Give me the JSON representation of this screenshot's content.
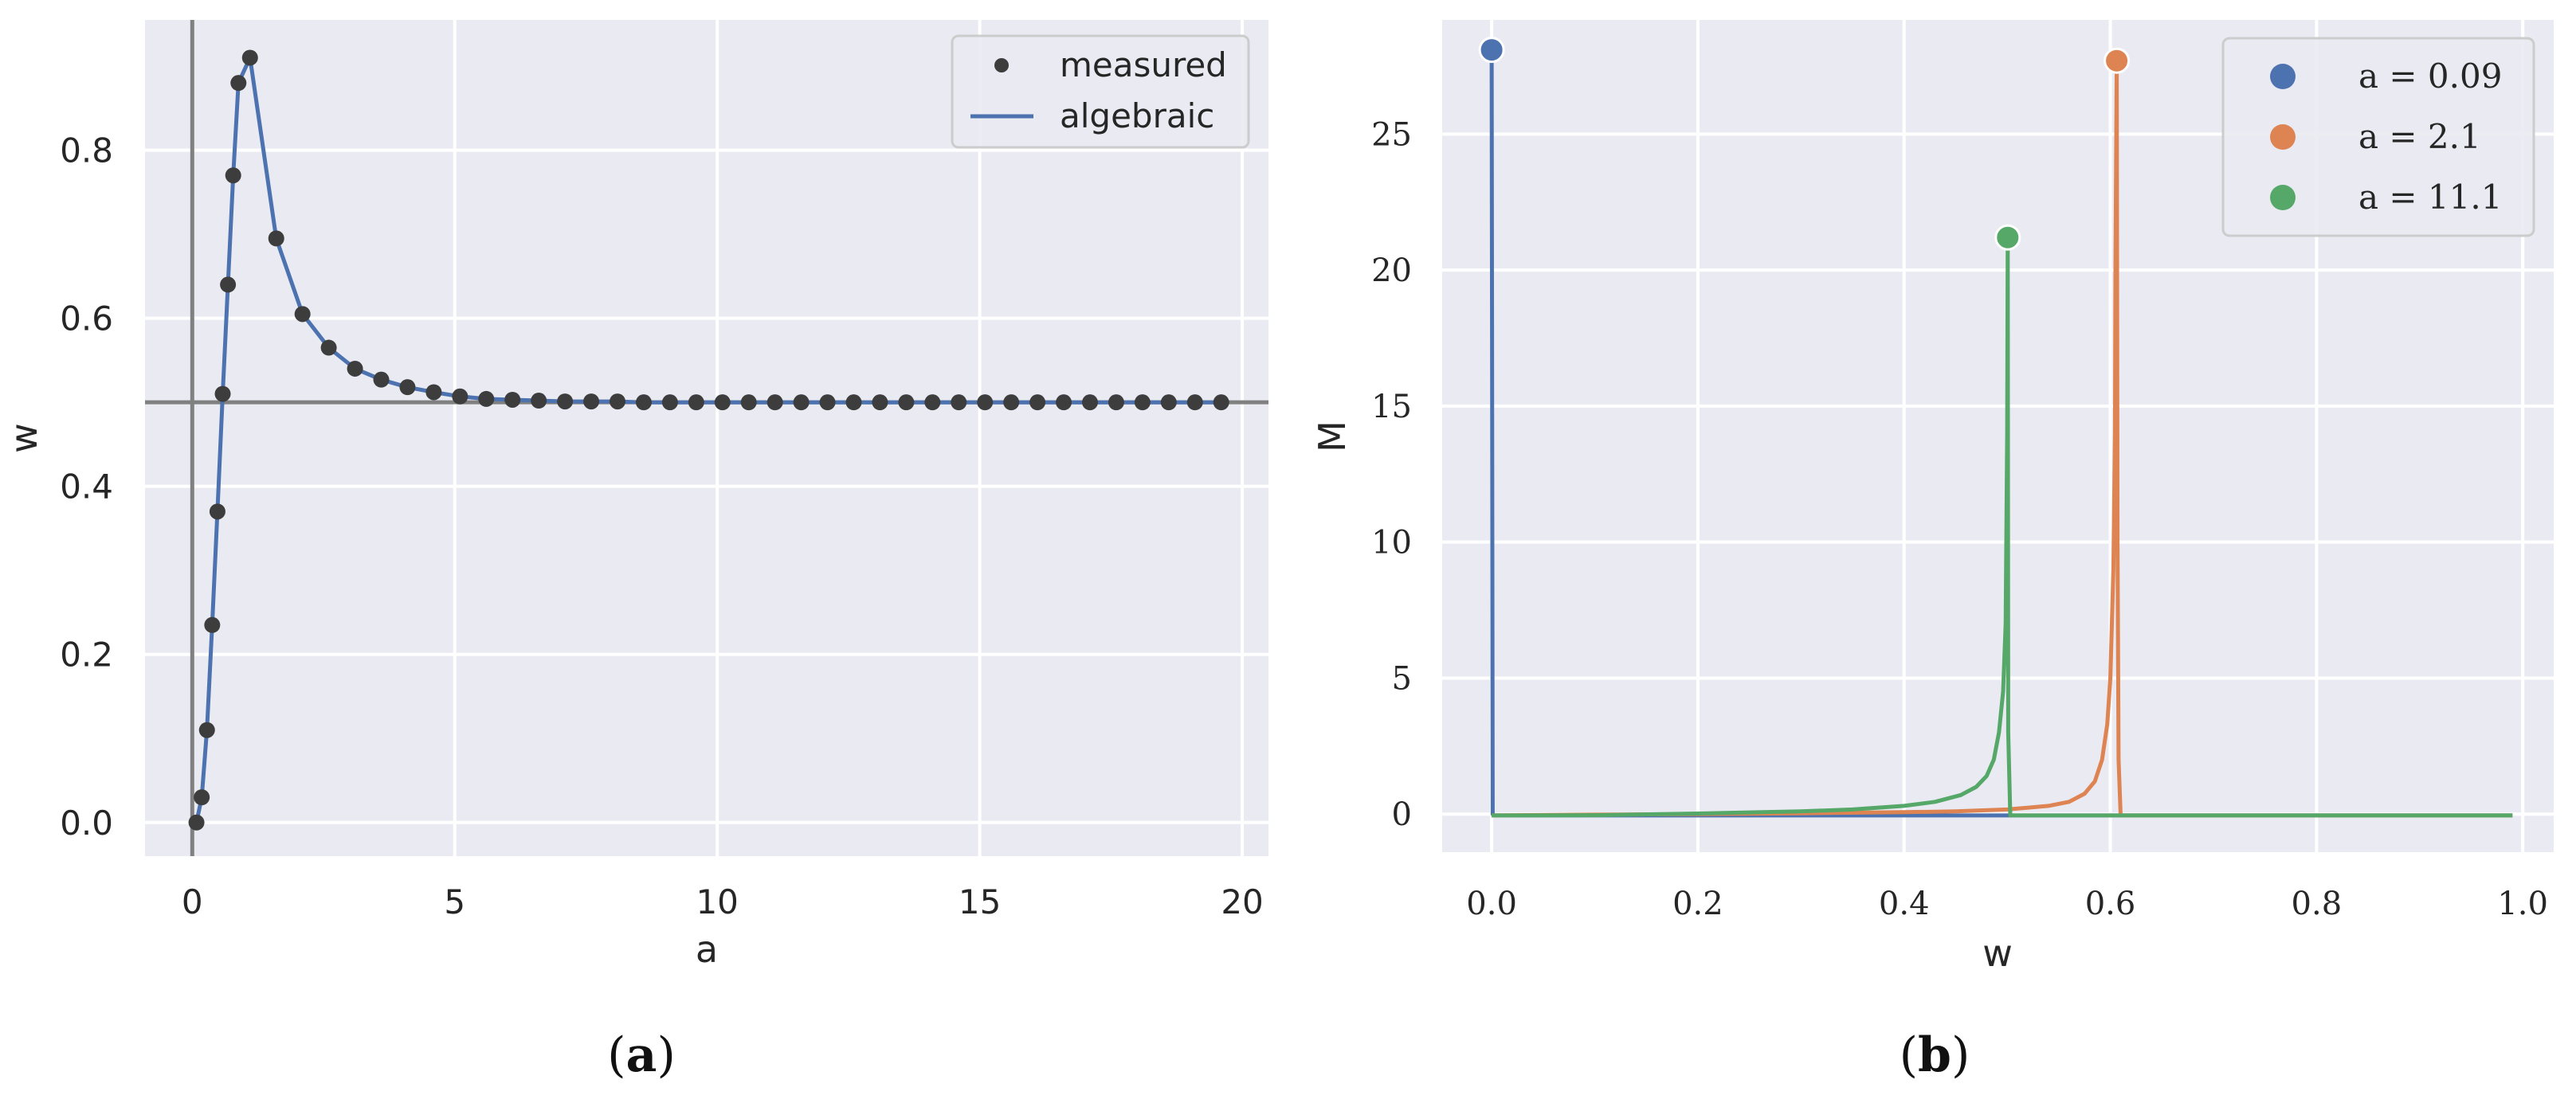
{
  "captions": {
    "a_open": "(",
    "a_letter": "a",
    "a_close": ")",
    "b_open": "(",
    "b_letter": "b",
    "b_close": ")"
  },
  "chart_data": [
    {
      "type": "scatter",
      "xlabel": "a",
      "ylabel": "w",
      "xlim": [
        -0.9,
        20.5
      ],
      "ylim": [
        -0.04,
        0.955
      ],
      "xticks": [
        0,
        5,
        10,
        15,
        20
      ],
      "xtick_labels": [
        "0",
        "5",
        "10",
        "15",
        "20"
      ],
      "yticks": [
        0.0,
        0.2,
        0.4,
        0.6,
        0.8
      ],
      "ytick_labels": [
        "0.0",
        "0.2",
        "0.4",
        "0.6",
        "0.8"
      ],
      "grid": true,
      "legend": "top-right",
      "reference_lines": {
        "vertical_x": 0,
        "horizontal_y": 0.5,
        "color": "#808080"
      },
      "series": [
        {
          "name": "measured",
          "kind": "points",
          "color": "#3d3d3d",
          "x": [
            0.08,
            0.18,
            0.28,
            0.38,
            0.48,
            0.58,
            0.68,
            0.78,
            0.88,
            1.1,
            1.6,
            2.1,
            2.6,
            3.1,
            3.6,
            4.1,
            4.6,
            5.1,
            5.6,
            6.1,
            6.6,
            7.1,
            7.6,
            8.1,
            8.6,
            9.1,
            9.6,
            10.1,
            10.6,
            11.1,
            11.6,
            12.1,
            12.6,
            13.1,
            13.6,
            14.1,
            14.6,
            15.1,
            15.6,
            16.1,
            16.6,
            17.1,
            17.6,
            18.1,
            18.6,
            19.1,
            19.6
          ],
          "y": [
            0.0,
            0.03,
            0.11,
            0.235,
            0.37,
            0.51,
            0.64,
            0.77,
            0.88,
            0.91,
            0.695,
            0.605,
            0.565,
            0.54,
            0.527,
            0.518,
            0.512,
            0.507,
            0.504,
            0.503,
            0.502,
            0.501,
            0.501,
            0.501,
            0.5,
            0.5,
            0.5,
            0.5,
            0.5,
            0.5,
            0.5,
            0.5,
            0.5,
            0.5,
            0.5,
            0.5,
            0.5,
            0.5,
            0.5,
            0.5,
            0.5,
            0.5,
            0.5,
            0.5,
            0.5,
            0.5,
            0.5
          ]
        },
        {
          "name": "algebraic",
          "kind": "line",
          "color": "#4c72b0",
          "x": [
            0.08,
            0.18,
            0.28,
            0.38,
            0.48,
            0.58,
            0.68,
            0.78,
            0.88,
            1.1,
            1.6,
            2.1,
            2.6,
            3.1,
            3.6,
            4.1,
            4.6,
            5.1,
            5.6,
            6.1,
            6.6,
            7.1,
            7.6,
            8.1,
            8.6,
            9.1,
            9.6,
            10.1,
            10.6,
            11.1,
            11.6,
            12.1,
            12.6,
            13.1,
            13.6,
            14.1,
            14.6,
            15.1,
            15.6,
            16.1,
            16.6,
            17.1,
            17.6,
            18.1,
            18.6,
            19.1,
            19.6
          ],
          "y": [
            0.0,
            0.03,
            0.11,
            0.235,
            0.37,
            0.51,
            0.64,
            0.77,
            0.88,
            0.91,
            0.695,
            0.605,
            0.565,
            0.54,
            0.527,
            0.518,
            0.512,
            0.507,
            0.504,
            0.503,
            0.502,
            0.501,
            0.501,
            0.501,
            0.5,
            0.5,
            0.5,
            0.5,
            0.5,
            0.5,
            0.5,
            0.5,
            0.5,
            0.5,
            0.5,
            0.5,
            0.5,
            0.5,
            0.5,
            0.5,
            0.5,
            0.5,
            0.5,
            0.5,
            0.5,
            0.5,
            0.5
          ]
        }
      ]
    },
    {
      "type": "line",
      "xlabel": "w",
      "ylabel": "M",
      "xlim": [
        -0.048,
        1.03
      ],
      "ylim": [
        -1.4,
        29.2
      ],
      "xticks": [
        0.0,
        0.2,
        0.4,
        0.6,
        0.8,
        1.0
      ],
      "xtick_labels": [
        "0.0",
        "0.2",
        "0.4",
        "0.6",
        "0.8",
        "1.0"
      ],
      "yticks": [
        0,
        5,
        10,
        15,
        20,
        25
      ],
      "ytick_labels": [
        "0",
        "5",
        "10",
        "15",
        "20",
        "25"
      ],
      "grid": true,
      "legend": "top-right",
      "series": [
        {
          "name": "a = 0.09",
          "color": "#4c72b0",
          "x": [
            0.0,
            0.001,
            0.002,
            0.005,
            0.05,
            0.2,
            0.4,
            0.6,
            0.8,
            0.99
          ],
          "y": [
            28.1,
            0.0,
            -0.05,
            -0.05,
            -0.05,
            -0.05,
            -0.05,
            -0.05,
            -0.05,
            -0.05
          ],
          "peak": [
            0.0,
            28.1
          ]
        },
        {
          "name": "a = 2.1",
          "color": "#dd8452",
          "x": [
            0.0,
            0.1,
            0.2,
            0.3,
            0.4,
            0.45,
            0.5,
            0.54,
            0.56,
            0.575,
            0.585,
            0.592,
            0.597,
            0.6,
            0.603,
            0.6045,
            0.605,
            0.6062,
            0.607,
            0.608,
            0.61,
            0.62,
            0.8,
            0.99
          ],
          "y": [
            -0.05,
            -0.02,
            0.0,
            0.03,
            0.07,
            0.1,
            0.17,
            0.3,
            0.45,
            0.75,
            1.2,
            2.0,
            3.3,
            5.0,
            9.0,
            14.0,
            20.0,
            27.7,
            10.0,
            2.0,
            -0.05,
            -0.05,
            -0.05,
            -0.05
          ],
          "peak": [
            0.6062,
            27.7
          ]
        },
        {
          "name": "a = 11.1",
          "color": "#55a868",
          "x": [
            0.0,
            0.1,
            0.2,
            0.3,
            0.35,
            0.4,
            0.43,
            0.455,
            0.47,
            0.48,
            0.487,
            0.492,
            0.496,
            0.4985,
            0.5,
            0.5005,
            0.501,
            0.503,
            0.51,
            0.7,
            0.99
          ],
          "y": [
            -0.05,
            -0.04,
            0.02,
            0.1,
            0.17,
            0.3,
            0.45,
            0.7,
            1.0,
            1.4,
            2.0,
            3.0,
            4.5,
            7.0,
            14.0,
            21.2,
            3.0,
            -0.05,
            -0.05,
            -0.05,
            -0.05
          ],
          "peak": [
            0.5005,
            21.2
          ]
        }
      ]
    }
  ]
}
